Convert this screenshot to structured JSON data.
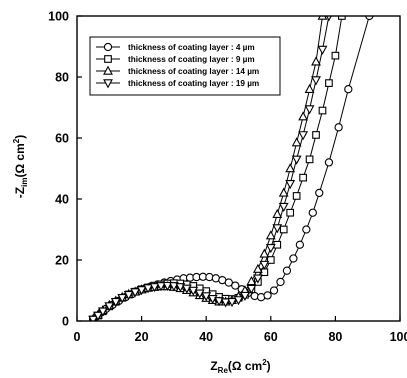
{
  "chart_data": {
    "type": "scatter",
    "xlabel": {
      "main": "Z",
      "sub": "Re",
      "unit": "(Ω cm",
      "sup": "2",
      "close": ")"
    },
    "ylabel": {
      "prefix": "-Z",
      "sub": "im",
      "unit": "(Ω cm",
      "sup": "2",
      "close": ")"
    },
    "xlim": [
      0,
      100
    ],
    "ylim": [
      0,
      100
    ],
    "xticks": [
      0,
      20,
      40,
      60,
      80,
      100
    ],
    "yticks": [
      0,
      20,
      40,
      60,
      80,
      100
    ],
    "grid": false,
    "legend_position": "top-left",
    "series": [
      {
        "name": "thickness of coating layer : 4 µm",
        "marker": "circle",
        "points": [
          [
            5,
            0.5
          ],
          [
            6,
            1.5
          ],
          [
            7.5,
            2.8
          ],
          [
            9,
            4
          ],
          [
            11,
            5.3
          ],
          [
            13,
            6.6
          ],
          [
            15,
            7.8
          ],
          [
            17,
            8.8
          ],
          [
            19,
            9.8
          ],
          [
            21,
            10.6
          ],
          [
            23,
            11.4
          ],
          [
            25,
            12
          ],
          [
            27,
            12.6
          ],
          [
            29,
            13.1
          ],
          [
            31,
            13.6
          ],
          [
            33,
            14
          ],
          [
            35,
            14.2
          ],
          [
            37,
            14.4
          ],
          [
            39,
            14.5
          ],
          [
            41,
            14.4
          ],
          [
            43,
            14
          ],
          [
            45,
            13.4
          ],
          [
            47,
            12.6
          ],
          [
            49,
            11.6
          ],
          [
            51,
            10.4
          ],
          [
            53,
            9.2
          ],
          [
            55,
            8.2
          ],
          [
            57,
            7.8
          ],
          [
            59,
            8.4
          ],
          [
            61,
            10
          ],
          [
            63,
            12.8
          ],
          [
            65,
            16.5
          ],
          [
            67,
            20.5
          ],
          [
            69,
            25
          ],
          [
            71,
            30
          ],
          [
            73,
            35.5
          ],
          [
            75,
            42
          ],
          [
            78,
            52
          ],
          [
            81,
            63.5
          ],
          [
            84,
            76
          ],
          [
            90.5,
            100
          ]
        ]
      },
      {
        "name": "thickness of coating layer : 9 µm",
        "marker": "square",
        "points": [
          [
            5,
            0.5
          ],
          [
            6.5,
            1.8
          ],
          [
            8,
            3.2
          ],
          [
            10,
            4.8
          ],
          [
            12,
            6.3
          ],
          [
            14,
            7.6
          ],
          [
            16,
            8.7
          ],
          [
            18,
            9.6
          ],
          [
            20,
            10.4
          ],
          [
            22,
            11
          ],
          [
            24,
            11.6
          ],
          [
            26,
            12
          ],
          [
            28,
            12.3
          ],
          [
            30,
            12.4
          ],
          [
            32,
            12.3
          ],
          [
            34,
            12
          ],
          [
            36,
            11.5
          ],
          [
            38,
            10.7
          ],
          [
            40,
            9.8
          ],
          [
            42,
            8.8
          ],
          [
            44,
            7.9
          ],
          [
            46,
            7.3
          ],
          [
            48,
            7.2
          ],
          [
            50,
            7.6
          ],
          [
            52,
            8.6
          ],
          [
            54,
            10.4
          ],
          [
            56,
            12.8
          ],
          [
            58,
            16
          ],
          [
            60,
            20
          ],
          [
            62,
            25
          ],
          [
            64,
            30
          ],
          [
            66,
            35.5
          ],
          [
            68,
            41
          ],
          [
            70,
            47
          ],
          [
            72,
            53
          ],
          [
            74,
            61
          ],
          [
            76,
            69
          ],
          [
            78,
            78
          ],
          [
            80,
            87
          ],
          [
            82,
            100
          ]
        ]
      },
      {
        "name": "thickness of coating layer : 14 µm",
        "marker": "triangle-up",
        "points": [
          [
            5,
            0.5
          ],
          [
            6.5,
            2
          ],
          [
            8,
            3.5
          ],
          [
            10,
            5.2
          ],
          [
            12,
            6.6
          ],
          [
            14,
            7.8
          ],
          [
            16,
            8.8
          ],
          [
            18,
            9.6
          ],
          [
            20,
            10.3
          ],
          [
            22,
            10.8
          ],
          [
            24,
            11.1
          ],
          [
            26,
            11.3
          ],
          [
            28,
            11.3
          ],
          [
            30,
            11.1
          ],
          [
            32,
            10.7
          ],
          [
            34,
            10.1
          ],
          [
            36,
            9.3
          ],
          [
            38,
            8.4
          ],
          [
            40,
            7.5
          ],
          [
            42,
            6.8
          ],
          [
            44,
            6.3
          ],
          [
            46,
            6.3
          ],
          [
            48,
            6.8
          ],
          [
            50,
            8
          ],
          [
            52,
            10
          ],
          [
            54,
            13
          ],
          [
            56,
            17
          ],
          [
            58,
            22
          ],
          [
            60,
            28
          ],
          [
            62,
            35
          ],
          [
            64,
            42
          ],
          [
            66,
            50
          ],
          [
            68,
            58.5
          ],
          [
            70,
            67
          ],
          [
            72,
            76
          ],
          [
            74,
            85
          ],
          [
            76,
            100
          ]
        ]
      },
      {
        "name": "thickness of coating layer : 19 µm",
        "marker": "triangle-down",
        "points": [
          [
            5,
            0.5
          ],
          [
            6.5,
            1.8
          ],
          [
            8,
            3.2
          ],
          [
            10,
            4.9
          ],
          [
            12,
            6.3
          ],
          [
            14,
            7.6
          ],
          [
            16,
            8.6
          ],
          [
            18,
            9.5
          ],
          [
            20,
            10.2
          ],
          [
            22,
            10.8
          ],
          [
            24,
            11.2
          ],
          [
            26,
            11.5
          ],
          [
            28,
            11.6
          ],
          [
            30,
            11.5
          ],
          [
            32,
            11.2
          ],
          [
            34,
            10.7
          ],
          [
            36,
            10
          ],
          [
            38,
            9.1
          ],
          [
            40,
            8.2
          ],
          [
            42,
            7.3
          ],
          [
            44,
            6.6
          ],
          [
            46,
            6.2
          ],
          [
            48,
            6.3
          ],
          [
            50,
            6.9
          ],
          [
            52,
            8.3
          ],
          [
            54,
            10.6
          ],
          [
            56,
            14
          ],
          [
            58,
            18.5
          ],
          [
            60,
            24
          ],
          [
            62,
            30.5
          ],
          [
            64,
            37.5
          ],
          [
            66,
            45
          ],
          [
            68,
            53
          ],
          [
            70,
            61
          ],
          [
            72,
            69.5
          ],
          [
            74,
            79
          ],
          [
            76,
            89
          ],
          [
            78,
            100
          ]
        ]
      }
    ]
  }
}
